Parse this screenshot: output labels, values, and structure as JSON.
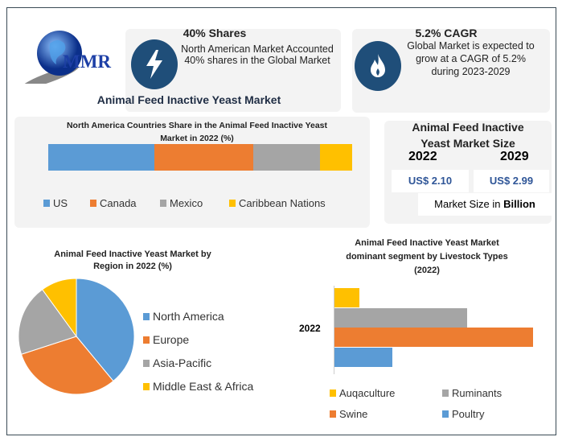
{
  "logo": {
    "text": "MMR"
  },
  "info_cards": [
    {
      "icon": "lightning-icon",
      "title": "40% Shares",
      "text_line1": "North American Market Accounted",
      "text_line2": "40% shares in the Global Market"
    },
    {
      "icon": "flame-icon",
      "title": "5.2% CAGR",
      "text_line1": "Global Market is expected to",
      "text_line2": "grow at a CAGR of 5.2%",
      "text_line3": "during 2023-2029"
    }
  ],
  "main_title": "Animal Feed Inactive Yeast Market",
  "market_size": {
    "title_line1": "Animal Feed Inactive",
    "title_line2": "Yeast Market Size",
    "year1": "2022",
    "year2": "2029",
    "value1": "US$ 2.10",
    "value2": "US$ 2.99",
    "footer_prefix": "Market Size in ",
    "footer_bold": "Billion"
  },
  "colors": {
    "blue": "#5b9bd5",
    "orange": "#ed7d31",
    "gray": "#a5a5a5",
    "yellow": "#ffc000",
    "navy": "#1f4e79"
  },
  "chart_data": [
    {
      "type": "bar",
      "stacked": true,
      "orientation": "horizontal",
      "title_line1": "North America Countries Share in the Animal Feed Inactive Yeast",
      "title_line2": "Market  in 2022 (%)",
      "legend_position": "bottom",
      "series": [
        {
          "name": "US",
          "values": [
            35
          ],
          "color": "#5b9bd5"
        },
        {
          "name": "Canada",
          "values": [
            32.5
          ],
          "color": "#ed7d31"
        },
        {
          "name": "Mexico",
          "values": [
            22
          ],
          "color": "#a5a5a5"
        },
        {
          "name": "Caribbean Nations",
          "values": [
            10.5
          ],
          "color": "#ffc000"
        }
      ]
    },
    {
      "type": "pie",
      "title_line1": "Animal Feed Inactive Yeast Market by",
      "title_line2": "Region in 2022 (%)",
      "legend_position": "right",
      "labels": [
        "North America",
        "Europe",
        "Asia-Pacific",
        "Middle East & Africa"
      ],
      "values": [
        39,
        31,
        20,
        10
      ],
      "colors": [
        "#5b9bd5",
        "#ed7d31",
        "#a5a5a5",
        "#ffc000"
      ]
    },
    {
      "type": "bar",
      "orientation": "horizontal",
      "title_line1": "Animal Feed Inactive Yeast Market",
      "title_line2": "dominant segment by Livestock Types",
      "title_line3": "(2022)",
      "categories": [
        "2022"
      ],
      "legend_position": "bottom",
      "series": [
        {
          "name": "Auqaculture",
          "values": [
            6
          ],
          "color": "#ffc000"
        },
        {
          "name": "Ruminants",
          "values": [
            32
          ],
          "color": "#a5a5a5"
        },
        {
          "name": "Swine",
          "values": [
            48
          ],
          "color": "#ed7d31"
        },
        {
          "name": "Poultry",
          "values": [
            14
          ],
          "color": "#5b9bd5"
        }
      ]
    }
  ]
}
